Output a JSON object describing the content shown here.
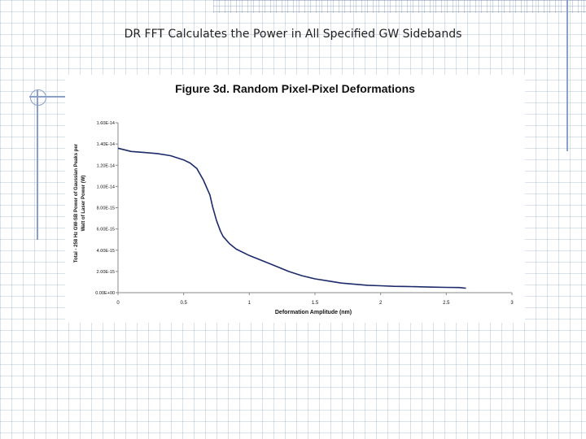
{
  "slide": {
    "title": "DR FFT Calculates the Power in All Specified GW Sidebands"
  },
  "colors": {
    "line": "#1c2a6b",
    "grid_bg": "#ffffff",
    "accent": "#8aa0c8"
  },
  "chart_data": {
    "type": "line",
    "title": "Figure 3d. Random Pixel-Pixel Deformations",
    "xlabel": "Deformation Amplitude (nm)",
    "ylabel_line1": "Total - 258 Hz GW-SB Power of Gaussian Peaks per",
    "ylabel_line2": "Watt of Laser Power (W)",
    "xlim": [
      0,
      3
    ],
    "ylim": [
      0,
      1.6e-14
    ],
    "x_ticks": [
      "0",
      "0.5",
      "1",
      "1.5",
      "2",
      "2.5",
      "3"
    ],
    "x_tick_values": [
      0,
      0.5,
      1,
      1.5,
      2,
      2.5,
      3
    ],
    "y_ticks": [
      "0.00E+00",
      "2.00E-15",
      "4.00E-15",
      "6.00E-15",
      "8.00E-15",
      "1.00E-14",
      "1.20E-14",
      "1.40E-14",
      "1.60E-14"
    ],
    "y_tick_values": [
      0,
      2e-15,
      4e-15,
      6e-15,
      8e-15,
      1e-14,
      1.2e-14,
      1.4e-14,
      1.6e-14
    ],
    "grid": false,
    "series": [
      {
        "x": [
          0,
          0.1,
          0.2,
          0.3,
          0.4,
          0.5,
          0.55,
          0.6,
          0.65,
          0.7,
          0.72,
          0.75,
          0.78,
          0.8,
          0.85,
          0.9,
          1.0,
          1.1,
          1.2,
          1.3,
          1.4,
          1.5,
          1.6,
          1.7,
          1.8,
          1.9,
          2.0,
          2.1,
          2.2,
          2.3,
          2.4,
          2.5,
          2.6,
          2.65
        ],
        "y": [
          1.36e-14,
          1.33e-14,
          1.32e-14,
          1.31e-14,
          1.29e-14,
          1.25e-14,
          1.22e-14,
          1.17e-14,
          1.06e-14,
          9.2e-15,
          8.1e-15,
          6.8e-15,
          5.8e-15,
          5.3e-15,
          4.6e-15,
          4.1e-15,
          3.5e-15,
          3e-15,
          2.5e-15,
          2e-15,
          1.6e-15,
          1.3e-15,
          1.1e-15,
          9e-16,
          8e-16,
          7e-16,
          6.5e-16,
          6e-16,
          5.8e-16,
          5.5e-16,
          5.2e-16,
          5e-16,
          4.8e-16,
          4.2e-16
        ]
      }
    ]
  }
}
